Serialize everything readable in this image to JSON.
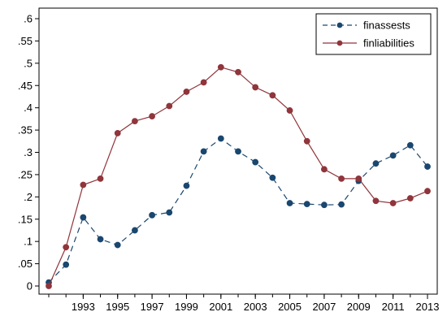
{
  "chart_data": {
    "type": "line",
    "title": "",
    "xlabel": "",
    "ylabel": "",
    "xlim": [
      1991,
      2013
    ],
    "ylim": [
      0,
      0.6
    ],
    "grid": false,
    "legend_position": "top-right",
    "y_ticks": [
      0,
      0.05,
      0.1,
      0.15,
      0.2,
      0.25,
      0.3,
      0.35,
      0.4,
      0.45,
      0.5,
      0.55,
      0.6
    ],
    "y_tick_labels": [
      "0",
      ".05",
      ".1",
      ".15",
      ".2",
      ".25",
      ".3",
      ".35",
      ".4",
      ".45",
      ".5",
      ".55",
      ".6"
    ],
    "x_ticks": [
      1993,
      1995,
      1997,
      1999,
      2001,
      2003,
      2005,
      2007,
      2009,
      2011,
      2013
    ],
    "x_tick_labels": [
      "1993",
      "1995",
      "1997",
      "1999",
      "2001",
      "2003",
      "2005",
      "2007",
      "2009",
      "2011",
      "2013"
    ],
    "x": [
      1991,
      1992,
      1993,
      1994,
      1995,
      1996,
      1997,
      1998,
      1999,
      2000,
      2001,
      2002,
      2003,
      2004,
      2005,
      2006,
      2007,
      2008,
      2009,
      2010,
      2011,
      2012,
      2013
    ],
    "series": [
      {
        "name": "finassests",
        "color": "#1a476f",
        "line_style": "dashed",
        "values": [
          0.008,
          0.048,
          0.154,
          0.105,
          0.092,
          0.125,
          0.159,
          0.165,
          0.225,
          0.302,
          0.331,
          0.302,
          0.278,
          0.243,
          0.186,
          0.184,
          0.182,
          0.183,
          0.236,
          0.275,
          0.293,
          0.316,
          0.268
        ]
      },
      {
        "name": "finliabilities",
        "color": "#90353b",
        "line_style": "solid",
        "values": [
          0.0,
          0.087,
          0.227,
          0.241,
          0.343,
          0.37,
          0.381,
          0.404,
          0.436,
          0.457,
          0.491,
          0.48,
          0.446,
          0.428,
          0.394,
          0.325,
          0.262,
          0.241,
          0.241,
          0.191,
          0.186,
          0.197,
          0.213
        ]
      }
    ]
  }
}
